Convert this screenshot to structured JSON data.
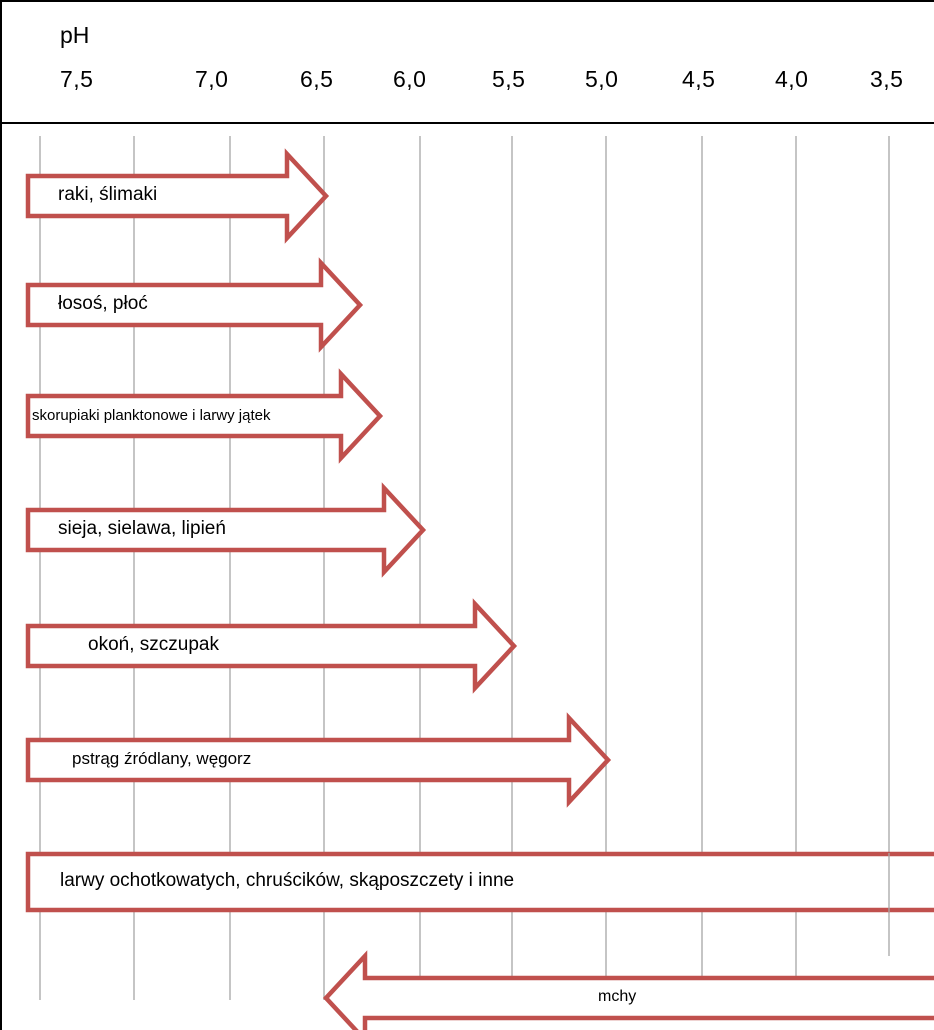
{
  "header": {
    "unit_label": "pH",
    "ticks": [
      "7,5",
      "7,0",
      "6,5",
      "6,0",
      "5,5",
      "5,0",
      "4,5",
      "4,0",
      "3,5"
    ]
  },
  "colors": {
    "arrow_stroke": "#c0504d",
    "arrow_fill": "#ffffff",
    "grid_line": "#a6a6a6",
    "frame": "#000000"
  },
  "arrows": [
    {
      "label": "raki, ślimaki",
      "direction": "right",
      "ph_from": 7.5,
      "ph_to": 6.5
    },
    {
      "label": "łosoś, płoć",
      "direction": "right",
      "ph_from": 7.5,
      "ph_to": 6.3
    },
    {
      "label": "skorupiaki planktonowe i larwy jątek",
      "direction": "right",
      "ph_from": 7.5,
      "ph_to": 6.2
    },
    {
      "label": "sieja, sielawa, lipień",
      "direction": "right",
      "ph_from": 7.5,
      "ph_to": 6.0
    },
    {
      "label": "okoń, szczupak",
      "direction": "right",
      "ph_from": 7.5,
      "ph_to": 5.5
    },
    {
      "label": "pstrąg źródlany, węgorz",
      "direction": "right",
      "ph_from": 7.5,
      "ph_to": 5.0
    },
    {
      "label": "larwy ochotkowatych, chruścików, skąposzczety i inne",
      "direction": "bar",
      "ph_from": 7.5,
      "ph_to": 3.3
    },
    {
      "label": "mchy",
      "direction": "left",
      "ph_from": 3.3,
      "ph_to": 6.5
    }
  ]
}
